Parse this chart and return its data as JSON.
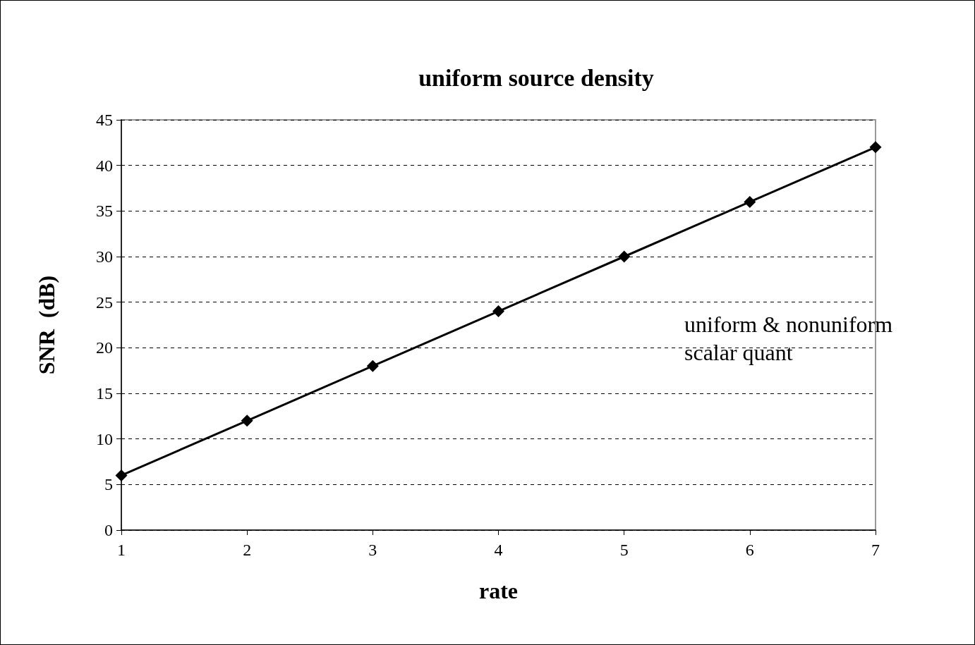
{
  "chart_data": {
    "type": "line",
    "title": "uniform source density",
    "xlabel": "rate",
    "ylabel": "SNR  (dB)",
    "x": [
      1,
      2,
      3,
      4,
      5,
      6,
      7
    ],
    "series": [
      {
        "color": "#000000",
        "values": [
          6,
          12,
          18,
          24,
          30,
          36,
          42
        ]
      }
    ],
    "xlim": [
      1,
      7
    ],
    "xticks": [
      1,
      2,
      3,
      4,
      5,
      6,
      7
    ],
    "ylim": [
      0,
      45
    ],
    "yticks": [
      0,
      5,
      10,
      15,
      20,
      25,
      30,
      35,
      40,
      45
    ],
    "grid": "y",
    "marker": "diamond",
    "line_style": "solid",
    "annotations": [
      "uniform & nonuniform\nscalar quant"
    ]
  }
}
